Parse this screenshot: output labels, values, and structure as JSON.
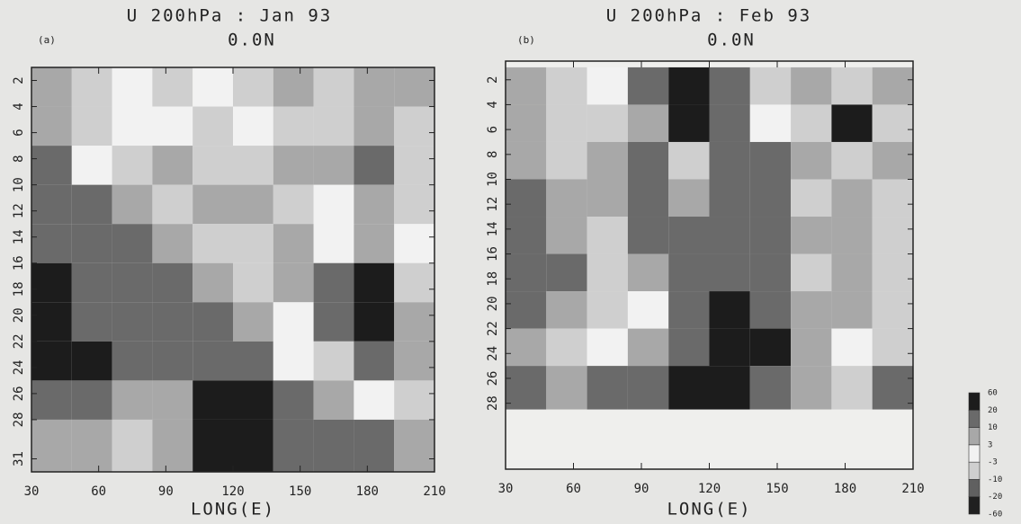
{
  "chart_data": [
    {
      "type": "heatmap",
      "title": "U 200hPa : Jan 93",
      "subtitle": "0.0N",
      "panel_label": "(a)",
      "x_label": "LONG(E)",
      "xlim": [
        30,
        210
      ],
      "xticks": [
        30,
        60,
        90,
        120,
        150,
        180,
        210
      ],
      "ylim": [
        1,
        32
      ],
      "yticks": [
        2,
        4,
        6,
        8,
        10,
        12,
        14,
        16,
        18,
        20,
        22,
        24,
        26,
        28,
        31
      ],
      "xbins": [
        30,
        48,
        66,
        84,
        102,
        120,
        138,
        156,
        174,
        192,
        210
      ],
      "ybins": [
        1,
        4,
        7,
        10,
        13,
        16,
        19,
        22,
        25,
        28,
        32
      ],
      "z": [
        [
          5,
          -5,
          2,
          -5,
          0,
          -5,
          5,
          -5,
          5,
          8
        ],
        [
          8,
          -5,
          0,
          2,
          -5,
          0,
          -5,
          -5,
          5,
          -5
        ],
        [
          10,
          0,
          -5,
          5,
          -5,
          -5,
          5,
          5,
          12,
          -5
        ],
        [
          12,
          15,
          5,
          -5,
          8,
          5,
          -5,
          2,
          5,
          -5
        ],
        [
          15,
          15,
          12,
          8,
          -5,
          -5,
          5,
          0,
          5,
          2
        ],
        [
          22,
          15,
          15,
          12,
          5,
          -5,
          5,
          15,
          25,
          -5
        ],
        [
          25,
          15,
          12,
          15,
          12,
          5,
          0,
          12,
          25,
          5
        ],
        [
          25,
          25,
          12,
          15,
          12,
          15,
          0,
          -5,
          12,
          5
        ],
        [
          15,
          12,
          8,
          5,
          25,
          25,
          12,
          5,
          0,
          -5
        ],
        [
          8,
          5,
          -5,
          5,
          25,
          30,
          12,
          15,
          12,
          5
        ]
      ]
    },
    {
      "type": "heatmap",
      "title": "U 200hPa : Feb 93",
      "subtitle": "0.0N",
      "panel_label": "(b)",
      "x_label": "LONG(E)",
      "xlim": [
        30,
        210
      ],
      "xticks": [
        30,
        60,
        90,
        120,
        150,
        180,
        210
      ],
      "ylim": [
        0.5,
        33.3
      ],
      "yticks": [
        2,
        4,
        6,
        8,
        10,
        12,
        14,
        16,
        18,
        20,
        22,
        24,
        26,
        28
      ],
      "xbins": [
        30,
        48,
        66,
        84,
        102,
        120,
        138,
        156,
        174,
        192,
        210
      ],
      "ybins": [
        1,
        4,
        7,
        10,
        13,
        16,
        19,
        22,
        25,
        28.5
      ],
      "z": [
        [
          5,
          -5,
          0,
          15,
          30,
          15,
          -5,
          5,
          -5,
          5
        ],
        [
          5,
          -5,
          -5,
          5,
          30,
          12,
          0,
          -5,
          25,
          -5
        ],
        [
          5,
          -5,
          5,
          12,
          -5,
          15,
          12,
          5,
          -5,
          5
        ],
        [
          12,
          5,
          8,
          15,
          5,
          12,
          15,
          -5,
          5,
          -5
        ],
        [
          15,
          5,
          -5,
          12,
          12,
          15,
          15,
          5,
          5,
          -5
        ],
        [
          10,
          12,
          -5,
          5,
          15,
          15,
          12,
          -5,
          5,
          -5
        ],
        [
          12,
          5,
          -5,
          0,
          12,
          25,
          12,
          5,
          5,
          -5
        ],
        [
          5,
          -5,
          2,
          5,
          15,
          25,
          25,
          5,
          0,
          -5
        ],
        [
          12,
          5,
          12,
          15,
          25,
          25,
          12,
          5,
          -5,
          10
        ]
      ]
    }
  ],
  "colorbar": {
    "levels": [
      -60,
      -20,
      -10,
      -3,
      3,
      10,
      20,
      60
    ],
    "colors": [
      "#202020",
      "#606060",
      "#cfcfcf",
      "#f2f2f2",
      "#a8a8a8",
      "#6a6a6a",
      "#1c1c1c"
    ]
  }
}
